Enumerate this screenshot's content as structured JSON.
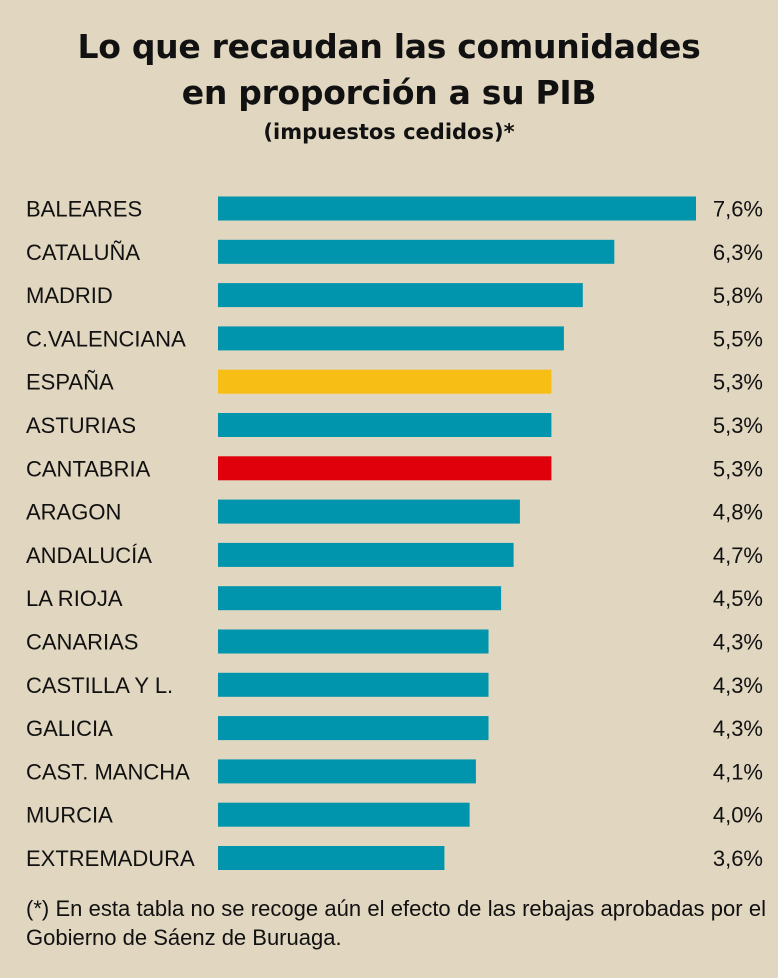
{
  "chart_data": {
    "type": "bar",
    "orientation": "horizontal",
    "title_lines": [
      "Lo que recaudan las comunidades",
      "en proporción a su PIB"
    ],
    "subtitle": "(impuestos cedidos)*",
    "categories": [
      "BALEARES",
      "CATALUÑA",
      "MADRID",
      "C.VALENCIANA",
      "ESPAÑA",
      "ASTURIAS",
      "CANTABRIA",
      "ARAGON",
      "ANDALUCÍA",
      "LA RIOJA",
      "CANARIAS",
      "CASTILLA Y L.",
      "GALICIA",
      "CAST. MANCHA",
      "MURCIA",
      "EXTREMADURA"
    ],
    "values": [
      7.6,
      6.3,
      5.8,
      5.5,
      5.3,
      5.3,
      5.3,
      4.8,
      4.7,
      4.5,
      4.3,
      4.3,
      4.3,
      4.1,
      4.0,
      3.6
    ],
    "value_labels": [
      "7,6%",
      "6,3%",
      "5,8%",
      "5,5%",
      "5,3%",
      "5,3%",
      "5,3%",
      "4,8%",
      "4,7%",
      "4,5%",
      "4,3%",
      "4,3%",
      "4,3%",
      "4,1%",
      "4,0%",
      "3,6%"
    ],
    "unit": "%",
    "grid": false,
    "legend": "none",
    "colors": {
      "default": "#0094ad",
      "highlights": {
        "ESPAÑA": "#f7be16",
        "CANTABRIA": "#e0000b"
      }
    }
  },
  "footnote": "(*) En esta tabla no se recoge aún el efecto de las rebajas aprobadas por el Gobierno de Sáenz de Buruaga.",
  "colors": {
    "background": "#e1d6c0",
    "text": "#111111"
  }
}
